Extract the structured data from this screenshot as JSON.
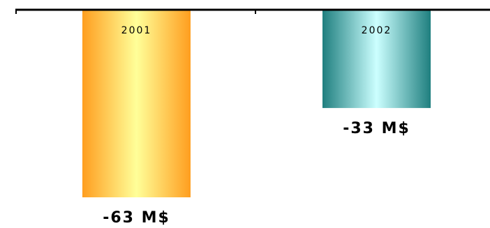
{
  "chart_data": {
    "type": "bar",
    "categories": [
      "2001",
      "2002"
    ],
    "values": [
      -63,
      -33
    ],
    "value_labels": [
      "-63 M$",
      "-33 M$"
    ],
    "ylim": [
      -63,
      0
    ],
    "grid": false,
    "legend": "none",
    "series_colors": [
      {
        "edge": "#ff9e1f",
        "center": "#ffff99"
      },
      {
        "edge": "#1f7f7f",
        "center": "#ccffff"
      }
    ],
    "axis_color": "#000000"
  }
}
